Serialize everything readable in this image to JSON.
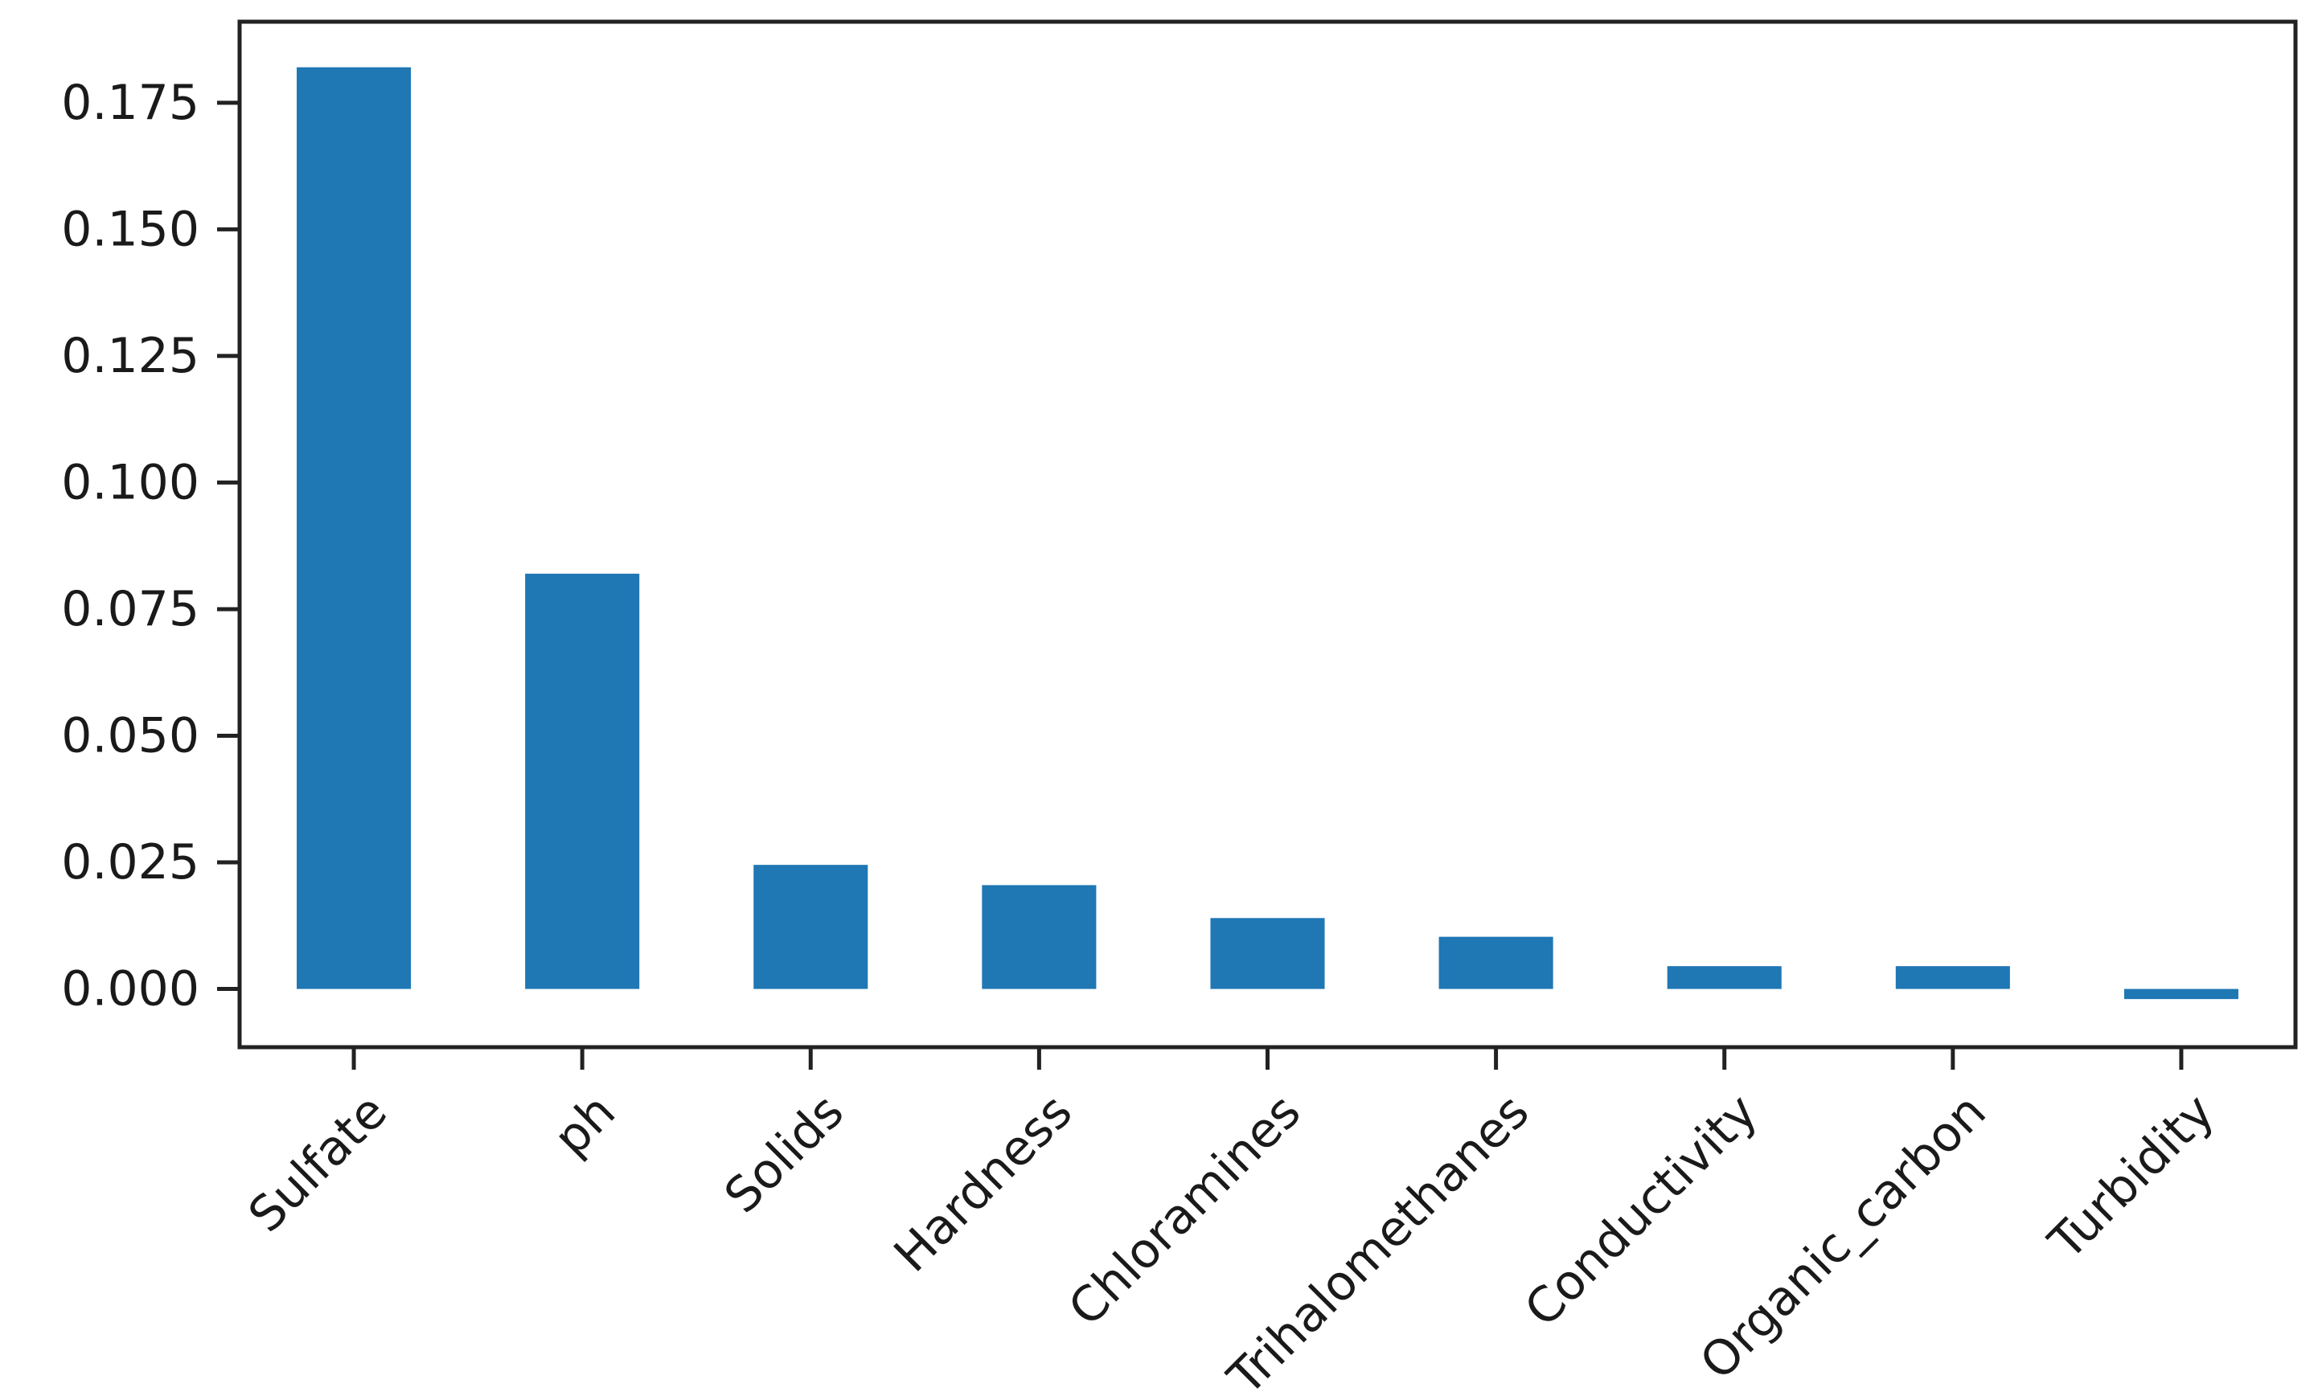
{
  "chart_data": {
    "type": "bar",
    "title": "",
    "xlabel": "",
    "ylabel": "",
    "categories": [
      "Sulfate",
      "ph",
      "Solids",
      "Hardness",
      "Chloramines",
      "Trihalomethanes",
      "Conductivity",
      "Organic_carbon",
      "Turbidity"
    ],
    "values": [
      0.182,
      0.082,
      0.0245,
      0.0205,
      0.014,
      0.0103,
      0.0045,
      0.0045,
      -0.002
    ],
    "ylim": [
      -0.0115,
      0.191
    ],
    "yticks": [
      0.0,
      0.025,
      0.05,
      0.075,
      0.1,
      0.125,
      0.15,
      0.175
    ],
    "ytick_labels": [
      "0.000",
      "0.025",
      "0.050",
      "0.075",
      "0.100",
      "0.125",
      "0.150",
      "0.175"
    ],
    "bar_color": "#1f77b4",
    "grid": false,
    "legend": false
  }
}
